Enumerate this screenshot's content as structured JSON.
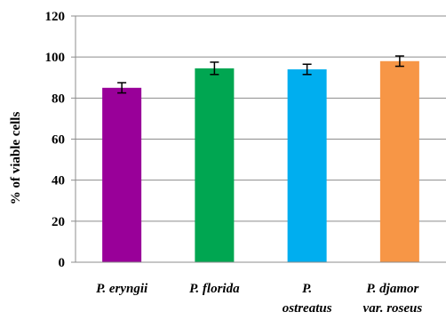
{
  "chart_data": {
    "type": "bar",
    "categories": [
      [
        "P. eryngii"
      ],
      [
        "P. florida"
      ],
      [
        "P.",
        "ostreatus"
      ],
      [
        "P. djamor",
        "var. roseus"
      ]
    ],
    "series": [
      {
        "values": [
          85,
          94.5,
          94,
          98
        ],
        "errors": [
          2.5,
          3,
          2.5,
          2.5
        ],
        "colors": [
          "#990099",
          "#00A651",
          "#00AEEF",
          "#F79646"
        ]
      }
    ],
    "ylabel": "% of viable cells",
    "ylim": [
      0,
      120
    ],
    "yticks": [
      0,
      20,
      40,
      60,
      80,
      100,
      120
    ],
    "grid": true
  }
}
